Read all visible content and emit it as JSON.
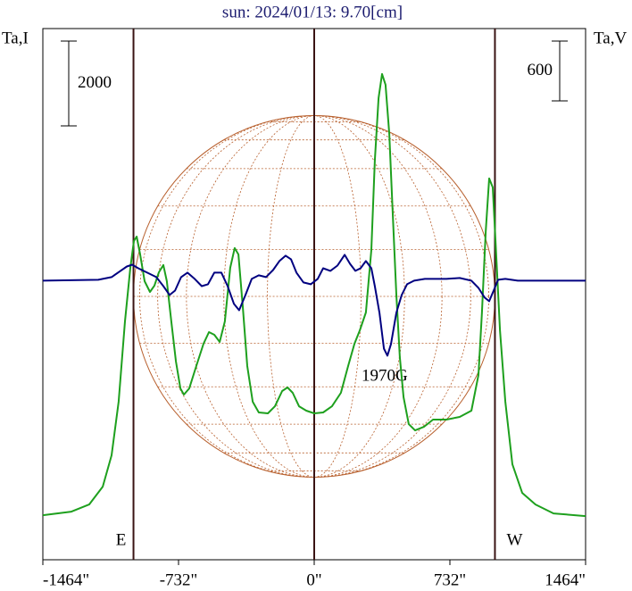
{
  "chart_data": {
    "type": "line",
    "title": "sun: 2024/01/13: 9.70[cm]",
    "y_label": "Ta,I",
    "y2_label": "Ta,V",
    "xlim": [
      -1464,
      1464
    ],
    "xticks": [
      {
        "value": -1464,
        "label": "-1464\""
      },
      {
        "value": -732,
        "label": "-732\""
      },
      {
        "value": 0,
        "label": "0\""
      },
      {
        "value": 732,
        "label": "732\""
      },
      {
        "value": 1464,
        "label": "1464\""
      }
    ],
    "ylim": [
      -1050,
      11470
    ],
    "y2lim": [
      -2800,
      2530
    ],
    "scale_bar": 2000,
    "scale_bar2": 600,
    "vlines": [
      {
        "value": -975,
        "label": "E"
      },
      {
        "value": 0
      },
      {
        "value": 975,
        "label": "W"
      }
    ],
    "annotations": [
      "1970G"
    ],
    "series": [
      {
        "color": "#1ea01e",
        "x": [
          -1464,
          -1310,
          -1214,
          -1141,
          -1093,
          -1055,
          -1021,
          -992,
          -973,
          -958,
          -939,
          -915,
          -886,
          -862,
          -838,
          -814,
          -795,
          -771,
          -746,
          -722,
          -703,
          -674,
          -636,
          -597,
          -568,
          -539,
          -510,
          -482,
          -453,
          -429,
          -409,
          -385,
          -361,
          -332,
          -299,
          -250,
          -212,
          -173,
          -144,
          -116,
          -82,
          -43,
          0,
          48,
          96,
          144,
          183,
          217,
          246,
          279,
          308,
          327,
          347,
          366,
          385,
          405,
          424,
          443,
          462,
          482,
          510,
          544,
          592,
          641,
          713,
          785,
          848,
          886,
          905,
          925,
          944,
          963,
          978,
          1002,
          1031,
          1069,
          1122,
          1194,
          1291,
          1464
        ],
        "values": [
          0,
          84,
          253,
          674,
          1411,
          2674,
          4568,
          5831,
          6463,
          6568,
          6147,
          5516,
          5263,
          5411,
          5726,
          5895,
          5516,
          4568,
          3621,
          2989,
          2842,
          2989,
          3516,
          4042,
          4316,
          4253,
          4084,
          4568,
          5831,
          6295,
          6147,
          4884,
          3516,
          2674,
          2421,
          2400,
          2568,
          2926,
          3011,
          2884,
          2568,
          2463,
          2400,
          2421,
          2568,
          2884,
          3516,
          4042,
          4358,
          4779,
          6253,
          8358,
          9832,
          10400,
          10147,
          8989,
          7095,
          5200,
          3726,
          2779,
          2147,
          2000,
          2084,
          2253,
          2253,
          2316,
          2463,
          3305,
          4779,
          6674,
          7937,
          7726,
          6463,
          4358,
          2674,
          1200,
          526,
          253,
          42,
          -21
        ]
      },
      {
        "color": "#000080",
        "axis": "y2",
        "x": [
          -1464,
          -1165,
          -1093,
          -1045,
          -1011,
          -982,
          -949,
          -901,
          -852,
          -814,
          -780,
          -751,
          -718,
          -684,
          -645,
          -607,
          -573,
          -539,
          -501,
          -467,
          -433,
          -405,
          -371,
          -337,
          -299,
          -260,
          -222,
          -188,
          -154,
          -125,
          -96,
          -58,
          -19,
          19,
          48,
          87,
          125,
          164,
          193,
          222,
          250,
          279,
          308,
          327,
          352,
          376,
          395,
          414,
          443,
          472,
          501,
          539,
          597,
          713,
          785,
          848,
          886,
          920,
          944,
          968,
          992,
          1031,
          1098,
          1464
        ],
        "values": [
          0,
          9,
          36,
          99,
          143,
          161,
          125,
          81,
          36,
          -54,
          -143,
          -99,
          36,
          81,
          18,
          -54,
          -36,
          81,
          81,
          -54,
          -233,
          -296,
          -143,
          18,
          54,
          36,
          107,
          197,
          251,
          215,
          81,
          -18,
          -36,
          18,
          125,
          99,
          152,
          260,
          170,
          99,
          125,
          197,
          125,
          -54,
          -322,
          -681,
          -752,
          -636,
          -322,
          -143,
          -36,
          0,
          18,
          18,
          27,
          0,
          -72,
          -170,
          -206,
          -99,
          9,
          18,
          0,
          0
        ]
      }
    ]
  }
}
